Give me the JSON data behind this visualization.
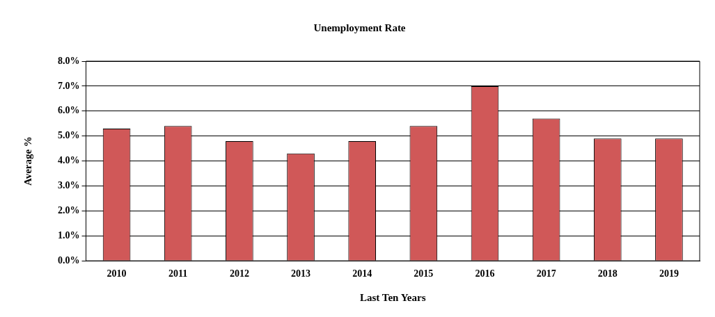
{
  "chart_data": {
    "type": "bar",
    "title": "Unemployment Rate",
    "xlabel": "Last Ten Years",
    "ylabel": "Average %",
    "categories": [
      "2010",
      "2011",
      "2012",
      "2013",
      "2014",
      "2015",
      "2016",
      "2017",
      "2018",
      "2019"
    ],
    "values": [
      5.3,
      5.4,
      4.8,
      4.3,
      4.8,
      5.4,
      7.0,
      5.7,
      4.9,
      4.9
    ],
    "color": "#d05858",
    "ylim": [
      0,
      8
    ],
    "yticks": [
      {
        "value": 0,
        "label": "0.0%"
      },
      {
        "value": 1,
        "label": "1.0%"
      },
      {
        "value": 2,
        "label": "2.0%"
      },
      {
        "value": 3,
        "label": "3.0%"
      },
      {
        "value": 4,
        "label": "4.0%"
      },
      {
        "value": 5,
        "label": "5.0%"
      },
      {
        "value": 6,
        "label": "6.0%"
      },
      {
        "value": 7,
        "label": "7.0%"
      },
      {
        "value": 8,
        "label": "8.0%"
      }
    ],
    "grid": "y",
    "legend": false
  }
}
